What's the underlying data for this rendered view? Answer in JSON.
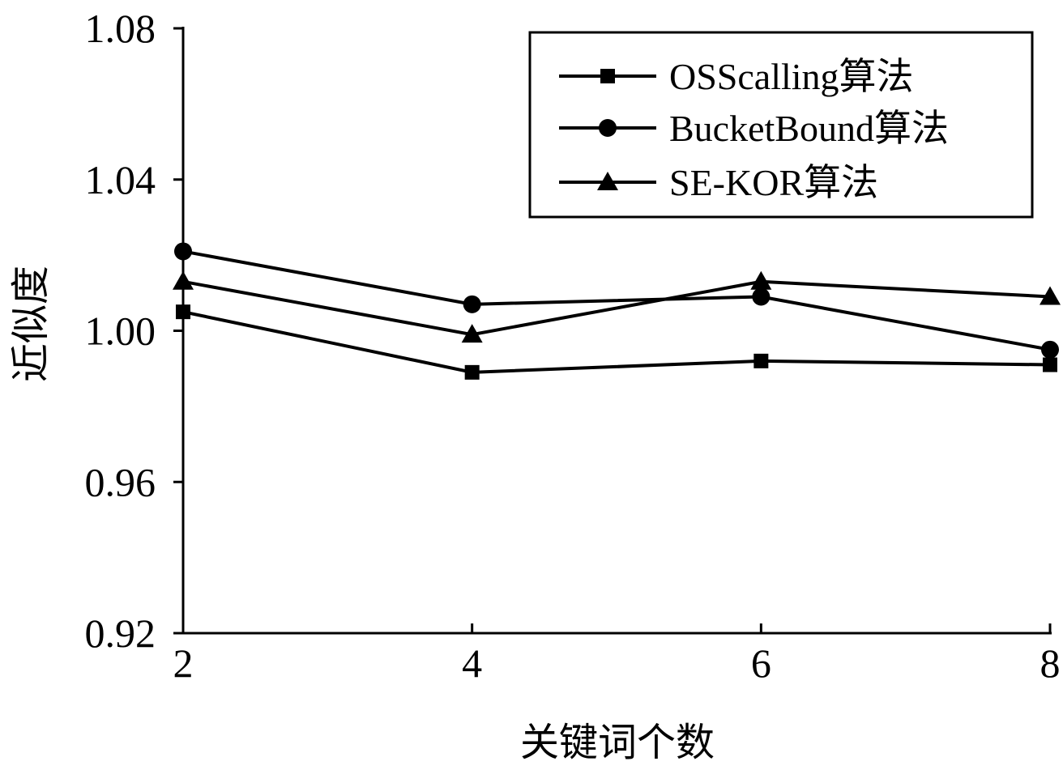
{
  "chart_data": {
    "type": "line",
    "title": "",
    "xlabel": "关键词个数",
    "ylabel": "近似度",
    "categories": [
      "2",
      "4",
      "6",
      "8"
    ],
    "x": [
      2,
      4,
      6,
      8
    ],
    "xlim": [
      2,
      8
    ],
    "ylim": [
      0.92,
      1.08
    ],
    "yticks": [
      "0.92",
      "0.96",
      "1.00",
      "1.04",
      "1.08"
    ],
    "ytick_values": [
      0.92,
      0.96,
      1.0,
      1.04,
      1.08
    ],
    "grid": false,
    "legend_position": "top-right",
    "series": [
      {
        "name": "OSScalling算法",
        "marker": "square",
        "color": "#000000",
        "values": [
          1.005,
          0.989,
          0.992,
          0.991
        ]
      },
      {
        "name": "BucketBound算法",
        "marker": "circle",
        "color": "#000000",
        "values": [
          1.021,
          1.007,
          1.009,
          0.995
        ]
      },
      {
        "name": "SE-KOR算法",
        "marker": "triangle",
        "color": "#000000",
        "values": [
          1.013,
          0.999,
          1.013,
          1.009
        ]
      }
    ]
  }
}
